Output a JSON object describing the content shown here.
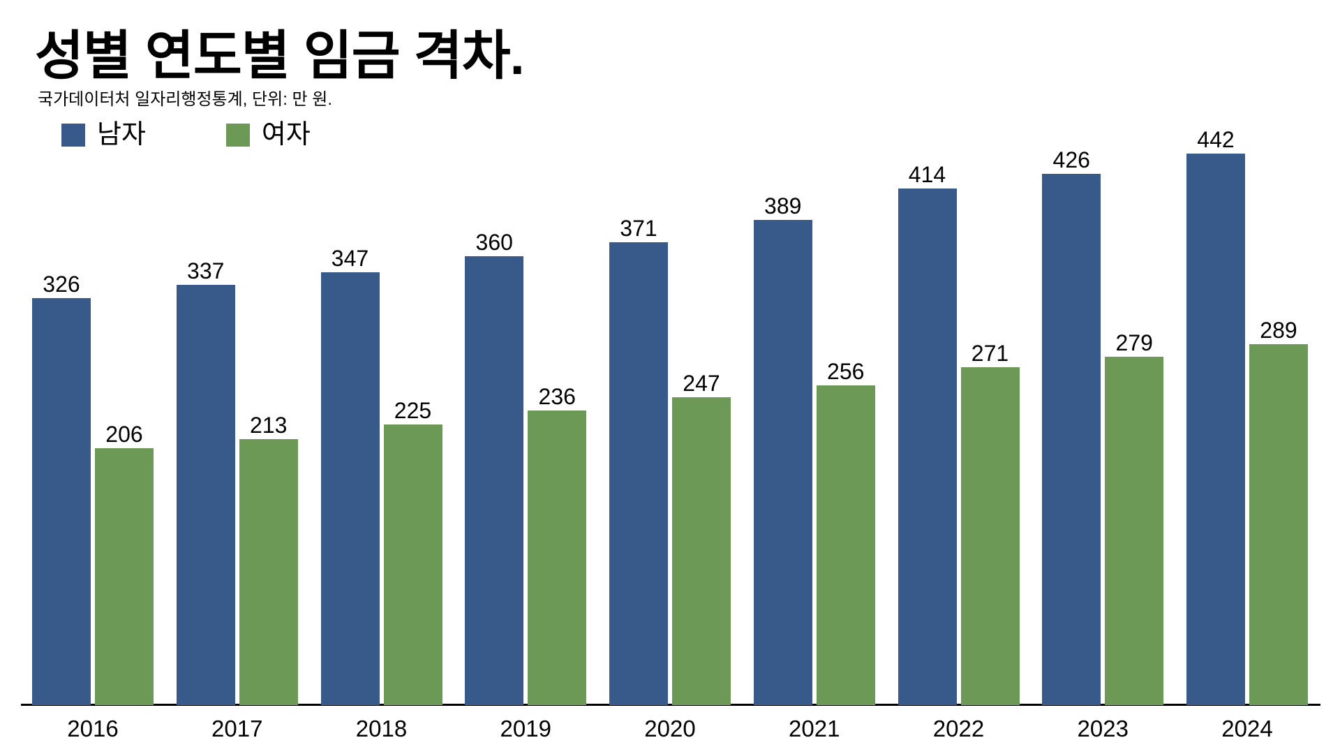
{
  "header": {
    "title": "성별 연도별 임금 격차.",
    "subtitle": "국가데이터처 일자리행정통계, 단위: 만 원."
  },
  "legend": {
    "male_label": "남자",
    "female_label": "여자"
  },
  "colors": {
    "male": "#385A8A",
    "female": "#6C9956",
    "text": "#000000",
    "axis": "#000000",
    "background": "#ffffff"
  },
  "chart_data": {
    "type": "bar",
    "title": "성별 연도별 임금 격차.",
    "subtitle": "국가데이터처 일자리행정통계, 단위: 만 원.",
    "categories": [
      "2016",
      "2017",
      "2018",
      "2019",
      "2020",
      "2021",
      "2022",
      "2023",
      "2024"
    ],
    "series": [
      {
        "key": "male",
        "name": "남자",
        "values": [
          326,
          337,
          347,
          360,
          371,
          389,
          414,
          426,
          442
        ]
      },
      {
        "key": "female",
        "name": "여자",
        "values": [
          206,
          213,
          225,
          236,
          247,
          256,
          271,
          279,
          289
        ]
      }
    ],
    "xlabel": "",
    "ylabel": "",
    "unit": "만 원",
    "ylim": [
      0,
      470
    ],
    "grid": false,
    "y_axis_visible": false,
    "legend_position": "top-left",
    "value_labels": true
  }
}
